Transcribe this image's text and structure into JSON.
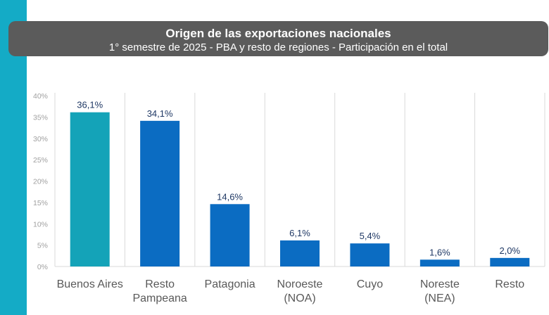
{
  "colors": {
    "side_band": "#14abc6",
    "title_bg": "#5b5b5b",
    "highlight_bar": "#14a3b8",
    "bar": "#0b6cc2",
    "grid": "#d9d9d9"
  },
  "chart_data": {
    "type": "bar",
    "title": "Origen de las exportaciones nacionales",
    "subtitle": "1° semestre de 2025 - PBA y resto de regiones - Participación en el total",
    "categories": [
      [
        "Buenos Aires"
      ],
      [
        "Resto",
        "Pampeana"
      ],
      [
        "Patagonia"
      ],
      [
        "Noroeste",
        "(NOA)"
      ],
      [
        "Cuyo"
      ],
      [
        "Noreste",
        "(NEA)"
      ],
      [
        "Resto"
      ]
    ],
    "values": [
      36.1,
      34.1,
      14.6,
      6.1,
      5.4,
      1.6,
      2.0
    ],
    "value_labels": [
      "36,1%",
      "34,1%",
      "14,6%",
      "6,1%",
      "5,4%",
      "1,6%",
      "2,0%"
    ],
    "highlight_index": 0,
    "ylim": [
      0,
      40
    ],
    "yticks": [
      0,
      5,
      10,
      15,
      20,
      25,
      30,
      35,
      40
    ],
    "ytick_labels": [
      "0%",
      "5%",
      "10%",
      "15%",
      "20%",
      "25%",
      "30%",
      "35%",
      "40%"
    ],
    "xlabel": "",
    "ylabel": ""
  }
}
